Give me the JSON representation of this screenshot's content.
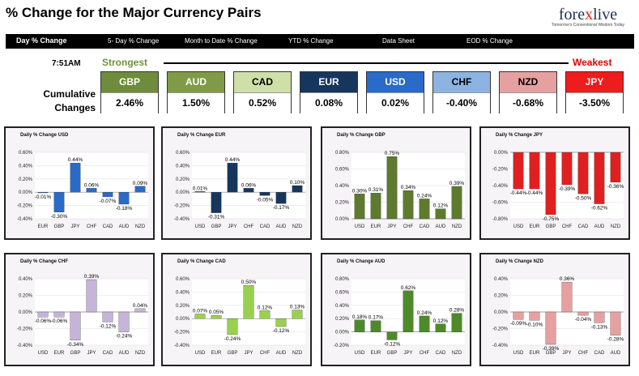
{
  "header": {
    "title": "% Change for the Major Currency Pairs"
  },
  "logo": {
    "brand_a": "fore",
    "brand_x": "x",
    "brand_b": "live",
    "tagline": "Tomorrow's Conventional Wisdom Today"
  },
  "nav": {
    "items": [
      "Day % Change",
      "5- Day % Change",
      "Month to Date % Change",
      "YTD % Change",
      "Data Sheet",
      "EOD % Change"
    ]
  },
  "strength": {
    "time": "7:51AM",
    "strongest": "Strongest",
    "weakest": "Weakest",
    "row_label_1": "Cumulative",
    "row_label_2": "Changes",
    "currencies": [
      {
        "code": "GBP",
        "value": "2.46%",
        "color": "#6e8c3c"
      },
      {
        "code": "AUD",
        "value": "1.50%",
        "color": "#7f9b48"
      },
      {
        "code": "CAD",
        "value": "0.52%",
        "color": "#cfdfa8"
      },
      {
        "code": "EUR",
        "value": "0.08%",
        "color": "#17365d"
      },
      {
        "code": "USD",
        "value": "0.02%",
        "color": "#2a6ac8"
      },
      {
        "code": "CHF",
        "value": "-0.40%",
        "color": "#8db3e2"
      },
      {
        "code": "NZD",
        "value": "-0.68%",
        "color": "#e6a0a0"
      },
      {
        "code": "JPY",
        "value": "-3.50%",
        "color": "#ee1c1c"
      }
    ]
  },
  "chart_data": [
    {
      "type": "bar",
      "title": "Daily % Change USD",
      "categories": [
        "EUR",
        "GBP",
        "JPY",
        "CHF",
        "CAD",
        "AUD",
        "NZD"
      ],
      "values": [
        -0.01,
        -0.3,
        0.44,
        0.06,
        -0.07,
        -0.18,
        0.09
      ],
      "labels": [
        "-0.01%",
        "-0.30%",
        "0.44%",
        "0.06%",
        "-0.07%",
        "-0.18%",
        "0.09%"
      ],
      "ylim": [
        -0.4,
        0.6
      ],
      "ticks": [
        "0.60%",
        "0.40%",
        "0.20%",
        "0.00%",
        "-0.20%",
        "-0.40%"
      ],
      "color": "#2a6ac8"
    },
    {
      "type": "bar",
      "title": "Daily % Change EUR",
      "categories": [
        "USD",
        "GBP",
        "JPY",
        "CHF",
        "CAD",
        "AUD",
        "NZD"
      ],
      "values": [
        0.01,
        -0.31,
        0.44,
        0.06,
        -0.05,
        -0.17,
        0.1
      ],
      "labels": [
        "0.01%",
        "-0.31%",
        "0.44%",
        "0.06%",
        "-0.05%",
        "-0.17%",
        "0.10%"
      ],
      "ylim": [
        -0.4,
        0.6
      ],
      "ticks": [
        "0.60%",
        "0.40%",
        "0.20%",
        "0.00%",
        "-0.20%",
        "-0.40%"
      ],
      "color": "#17365d"
    },
    {
      "type": "bar",
      "title": "Daily % Change GBP",
      "categories": [
        "USD",
        "EUR",
        "JPY",
        "CHF",
        "CAD",
        "AUD",
        "NZD"
      ],
      "values": [
        0.3,
        0.31,
        0.75,
        0.34,
        0.24,
        0.12,
        0.39
      ],
      "labels": [
        "0.30%",
        "0.31%",
        "0.75%",
        "0.34%",
        "0.24%",
        "0.12%",
        "0.39%"
      ],
      "ylim": [
        0,
        0.8
      ],
      "ticks": [
        "0.80%",
        "0.60%",
        "0.40%",
        "0.20%",
        "0.00%"
      ],
      "color": "#5d7a2e"
    },
    {
      "type": "bar",
      "title": "Daily % Change JPY",
      "categories": [
        "USD",
        "EUR",
        "GBP",
        "CHF",
        "CAD",
        "AUD",
        "NZD"
      ],
      "values": [
        -0.44,
        -0.44,
        -0.75,
        -0.39,
        -0.5,
        -0.62,
        -0.36
      ],
      "labels": [
        "-0.44%",
        "-0.44%",
        "-0.75%",
        "-0.39%",
        "-0.50%",
        "-0.62%",
        "-0.36%"
      ],
      "ylim": [
        -0.8,
        0
      ],
      "ticks": [
        "0.00%",
        "-0.20%",
        "-0.40%",
        "-0.60%",
        "-0.80%"
      ],
      "color": "#e02020"
    },
    {
      "type": "bar",
      "title": "Daily % Change CHF",
      "categories": [
        "USD",
        "EUR",
        "GBP",
        "JPY",
        "CAD",
        "AUD",
        "NZD"
      ],
      "values": [
        -0.06,
        -0.06,
        -0.34,
        0.39,
        -0.12,
        -0.24,
        0.04
      ],
      "labels": [
        "-0.06%",
        "-0.06%",
        "-0.34%",
        "0.39%",
        "-0.12%",
        "-0.24%",
        "0.04%"
      ],
      "ylim": [
        -0.4,
        0.4
      ],
      "ticks": [
        "0.40%",
        "0.20%",
        "0.00%",
        "-0.20%",
        "-0.40%"
      ],
      "color": "#c6b4d8"
    },
    {
      "type": "bar",
      "title": "Daily % Change CAD",
      "categories": [
        "USD",
        "EUR",
        "GBP",
        "JPY",
        "CHF",
        "AUD",
        "NZD"
      ],
      "values": [
        0.07,
        0.05,
        -0.24,
        0.5,
        0.12,
        -0.12,
        0.13
      ],
      "labels": [
        "0.07%",
        "0.05%",
        "-0.24%",
        "0.50%",
        "0.12%",
        "-0.12%",
        "0.13%"
      ],
      "ylim": [
        -0.4,
        0.6
      ],
      "ticks": [
        "0.60%",
        "0.40%",
        "0.20%",
        "0.00%",
        "-0.20%",
        "-0.40%"
      ],
      "color": "#9bd04e"
    },
    {
      "type": "bar",
      "title": "Daily % Change AUD",
      "categories": [
        "USD",
        "EUR",
        "GBP",
        "JPY",
        "CHF",
        "CAD",
        "NZD"
      ],
      "values": [
        0.18,
        0.17,
        -0.12,
        0.62,
        0.24,
        0.12,
        0.28
      ],
      "labels": [
        "0.18%",
        "0.17%",
        "-0.12%",
        "0.62%",
        "0.24%",
        "0.12%",
        "0.28%"
      ],
      "ylim": [
        -0.2,
        0.8
      ],
      "ticks": [
        "0.80%",
        "0.60%",
        "0.40%",
        "0.20%",
        "0.00%",
        "-0.20%"
      ],
      "color": "#4e8a2a"
    },
    {
      "type": "bar",
      "title": "Daily % Change NZD",
      "categories": [
        "USD",
        "EUR",
        "GBP",
        "JPY",
        "CHF",
        "CAD",
        "AUD"
      ],
      "values": [
        -0.09,
        -0.1,
        -0.39,
        0.36,
        -0.04,
        -0.13,
        -0.28
      ],
      "labels": [
        "-0.09%",
        "-0.10%",
        "-0.39%",
        "0.36%",
        "-0.04%",
        "-0.13%",
        "-0.28%"
      ],
      "ylim": [
        -0.4,
        0.4
      ],
      "ticks": [
        "0.40%",
        "0.20%",
        "0.00%",
        "-0.20%",
        "-0.40%"
      ],
      "color": "#e6a0a0"
    }
  ]
}
